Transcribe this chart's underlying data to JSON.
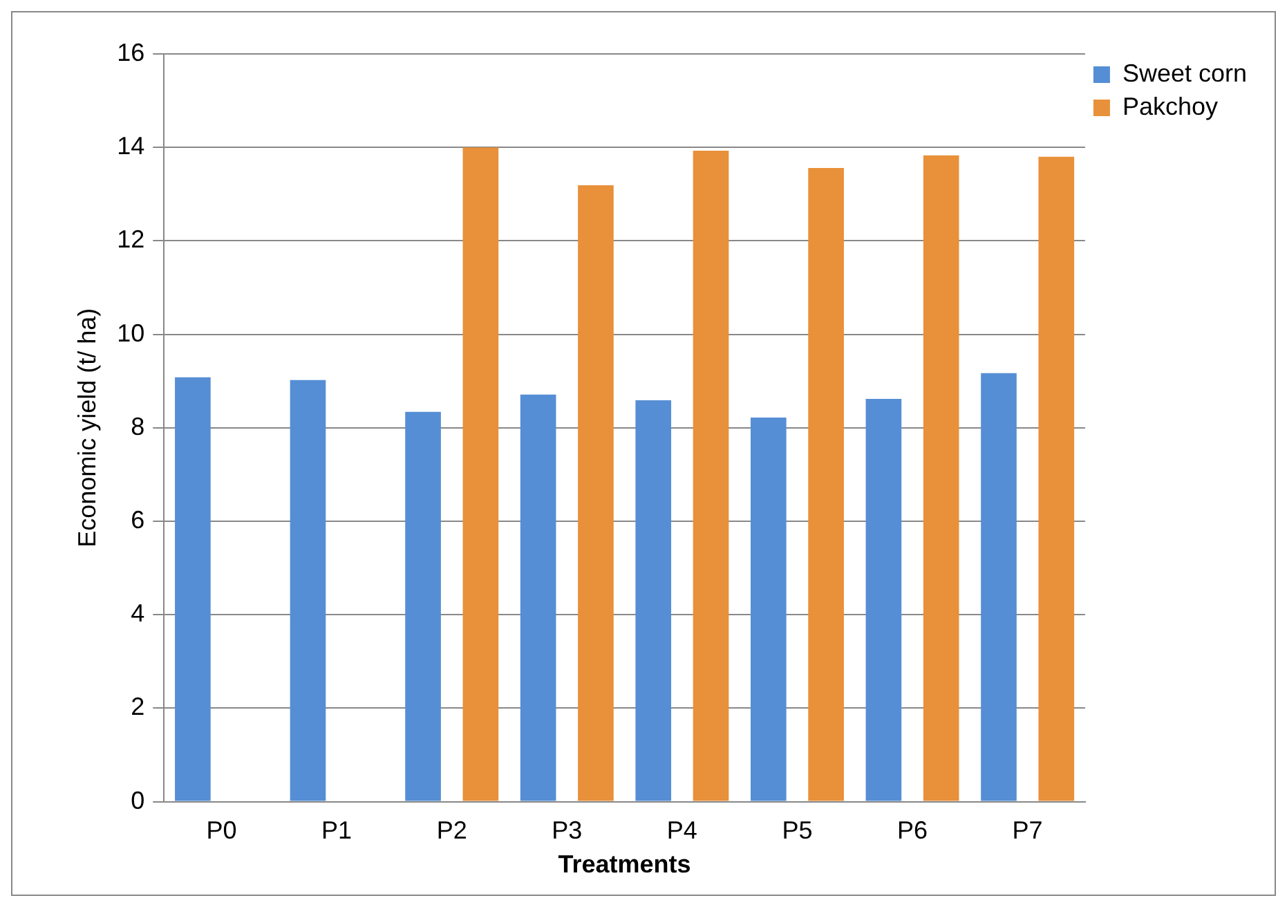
{
  "chart_data": {
    "type": "bar",
    "xlabel": "Treatments",
    "ylabel": "Economic yield (t/ ha)",
    "categories": [
      "P0",
      "P1",
      "P2",
      "P3",
      "P4",
      "P5",
      "P6",
      "P7"
    ],
    "series": [
      {
        "name": "Sweet corn",
        "color": "#558ed5",
        "values": [
          9.08,
          9.02,
          8.34,
          8.71,
          8.59,
          8.22,
          8.62,
          9.17
        ]
      },
      {
        "name": "Pakchoy",
        "color": "#e8903a",
        "values": [
          null,
          null,
          14.0,
          13.19,
          13.93,
          13.56,
          13.83,
          13.8
        ]
      }
    ],
    "ylim": [
      0,
      16
    ],
    "yticks": [
      0,
      2,
      4,
      6,
      8,
      10,
      12,
      14,
      16
    ],
    "grid": "y",
    "legend": "right"
  }
}
